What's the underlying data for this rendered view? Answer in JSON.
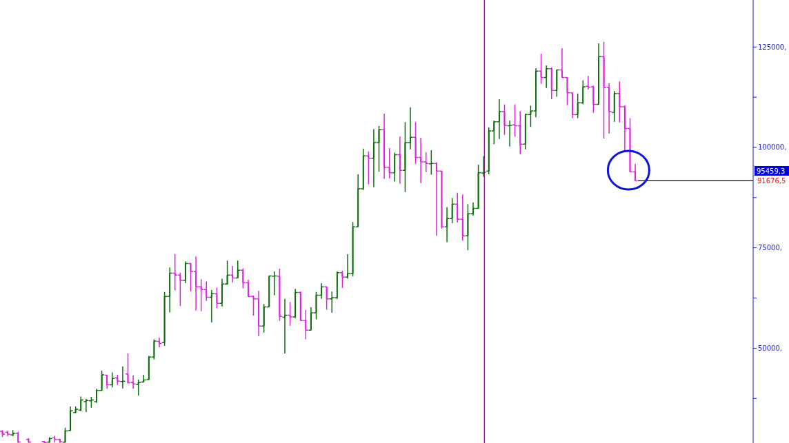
{
  "chart_data": {
    "type": "candlestick",
    "categories": [
      null,
      null,
      null,
      null,
      null,
      null,
      null,
      null,
      null,
      null,
      null,
      null,
      null,
      null,
      null,
      null,
      null,
      null,
      null,
      null,
      null,
      null,
      null,
      null,
      null,
      null,
      null,
      null,
      null,
      null,
      null,
      null,
      null,
      null,
      null,
      null,
      null,
      null,
      null,
      null,
      null,
      null,
      null,
      null,
      null,
      null,
      null,
      null,
      null,
      null,
      null,
      null,
      null,
      null,
      null,
      null,
      null,
      null,
      null,
      null,
      null,
      null,
      null,
      null,
      null,
      null,
      null,
      null,
      null,
      null,
      null,
      null,
      null,
      null,
      null,
      null,
      null,
      null,
      null,
      null,
      null,
      null,
      null,
      null,
      null,
      null,
      null,
      null,
      null,
      null,
      null,
      null,
      null,
      null,
      null,
      null,
      null,
      null,
      null,
      null,
      null,
      null,
      null,
      null,
      null,
      null,
      null,
      null,
      null,
      null,
      null,
      null,
      null,
      null,
      null,
      null,
      null,
      null,
      null,
      null,
      null,
      null,
      null,
      null,
      null,
      null,
      null,
      null,
      null,
      null,
      null,
      null,
      null,
      null,
      null,
      null,
      null,
      null,
      null,
      null,
      null,
      null,
      null,
      null
    ],
    "ohlc": [
      [
        29300,
        29600,
        27900,
        28600
      ],
      [
        29100,
        29500,
        28100,
        28600
      ],
      [
        28400,
        29600,
        28100,
        28800
      ],
      [
        28800,
        29200,
        26450,
        26600
      ],
      null,
      [
        27300,
        27600,
        26450,
        26600
      ],
      null,
      null,
      [
        26800,
        26900,
        26450,
        26500
      ],
      [
        26600,
        27800,
        26450,
        27500
      ],
      [
        27700,
        28200,
        26550,
        27300
      ],
      [
        27300,
        27500,
        26450,
        26700
      ],
      [
        26600,
        30200,
        26450,
        29400
      ],
      [
        29500,
        35500,
        29400,
        34400
      ],
      [
        34000,
        35500,
        33800,
        34800
      ],
      [
        34600,
        38000,
        34300,
        37100
      ],
      [
        36700,
        37400,
        34100,
        37000
      ],
      [
        36900,
        37900,
        35200,
        37100
      ],
      [
        36700,
        39900,
        36400,
        39500
      ],
      [
        39500,
        44400,
        39500,
        43400
      ],
      [
        43300,
        43400,
        39900,
        40900
      ],
      [
        40900,
        44000,
        40200,
        42500
      ],
      [
        42600,
        43400,
        40900,
        41800
      ],
      [
        41700,
        45500,
        40000,
        41800
      ],
      [
        43600,
        48700,
        41200,
        41400
      ],
      [
        41500,
        43200,
        39900,
        41100
      ],
      [
        41000,
        42200,
        38200,
        41500
      ],
      [
        41600,
        43400,
        41500,
        42100
      ],
      [
        42200,
        48100,
        42100,
        47800
      ],
      [
        47800,
        52200,
        47200,
        51800
      ],
      [
        51700,
        52600,
        50200,
        51200
      ],
      [
        51400,
        64000,
        50600,
        62900
      ],
      [
        62900,
        70100,
        58900,
        68700
      ],
      [
        68700,
        73500,
        64400,
        68200
      ],
      [
        68200,
        68800,
        60500,
        66900
      ],
      [
        66900,
        71600,
        66200,
        71100
      ],
      [
        71100,
        71200,
        64200,
        69100
      ],
      [
        69100,
        72800,
        59400,
        65300
      ],
      [
        65300,
        67200,
        59200,
        64600
      ],
      [
        64600,
        66600,
        61800,
        62700
      ],
      [
        62700,
        64500,
        56400,
        63600
      ],
      [
        63600,
        65100,
        60000,
        61200
      ],
      [
        61200,
        67300,
        60400,
        66000
      ],
      [
        66000,
        71800,
        65800,
        68200
      ],
      [
        68200,
        70500,
        66400,
        67500
      ],
      [
        67500,
        71800,
        67500,
        69400
      ],
      [
        69400,
        69900,
        64900,
        66300
      ],
      [
        66300,
        67100,
        62800,
        62900
      ],
      [
        62900,
        63100,
        58100,
        62300
      ],
      [
        62300,
        64300,
        53000,
        55500
      ],
      [
        55500,
        61000,
        53900,
        60300
      ],
      [
        60300,
        68000,
        60300,
        68000
      ],
      [
        67900,
        69100,
        63200,
        68000
      ],
      [
        67900,
        69800,
        56800,
        57900
      ],
      [
        57700,
        62300,
        48700,
        58200
      ],
      [
        58200,
        61500,
        55600,
        57800
      ],
      [
        57800,
        64800,
        57500,
        63900
      ],
      [
        63900,
        64100,
        56800,
        56900
      ],
      [
        56900,
        59500,
        52200,
        54500
      ],
      [
        54500,
        60200,
        54500,
        58800
      ],
      [
        58800,
        64000,
        57200,
        63200
      ],
      [
        63200,
        66200,
        62300,
        65300
      ],
      [
        65300,
        65300,
        59600,
        62300
      ],
      [
        62300,
        64100,
        58800,
        62600
      ],
      [
        62600,
        69100,
        62200,
        68800
      ],
      [
        68800,
        69300,
        65000,
        67700
      ],
      [
        67700,
        73400,
        67300,
        68600
      ],
      [
        68600,
        81400,
        67900,
        80200
      ],
      [
        80200,
        93300,
        80200,
        89700
      ],
      [
        89700,
        99700,
        89400,
        97900
      ],
      [
        97900,
        99000,
        90800,
        97300
      ],
      [
        97300,
        104600,
        90100,
        101200
      ],
      [
        101200,
        105300,
        94000,
        104400
      ],
      [
        104400,
        108400,
        92200,
        95000
      ],
      [
        95000,
        99800,
        92300,
        93700
      ],
      [
        93700,
        98700,
        91500,
        98200
      ],
      [
        98200,
        102700,
        91000,
        94300
      ],
      [
        94300,
        106300,
        88900,
        101200
      ],
      [
        101200,
        110000,
        99500,
        102500
      ],
      [
        102500,
        106300,
        95900,
        97500
      ],
      [
        97500,
        102400,
        91100,
        96400
      ],
      [
        96400,
        98800,
        93900,
        96000
      ],
      [
        95900,
        99300,
        93200,
        96000
      ],
      [
        96000,
        96300,
        78000,
        94100
      ],
      [
        94100,
        94200,
        79800,
        80200
      ],
      [
        80200,
        85100,
        76400,
        82300
      ],
      [
        82300,
        87400,
        81100,
        85900
      ],
      [
        85900,
        88700,
        81300,
        82100
      ],
      [
        82100,
        88300,
        76800,
        78000
      ],
      [
        78000,
        85900,
        74400,
        83500
      ],
      [
        83500,
        86300,
        83000,
        84800
      ],
      [
        84800,
        95700,
        84800,
        93700
      ],
      [
        93600,
        97800,
        92700,
        93800
      ],
      [
        94100,
        105000,
        93300,
        104100
      ],
      [
        104100,
        106700,
        100800,
        106400
      ],
      [
        106400,
        112000,
        102100,
        108900
      ],
      [
        108900,
        110700,
        103100,
        105500
      ],
      [
        105400,
        106700,
        100200,
        105500
      ],
      [
        105600,
        110700,
        102700,
        105400
      ],
      [
        105400,
        109000,
        98300,
        100800
      ],
      [
        100800,
        108400,
        99500,
        108200
      ],
      [
        108200,
        110400,
        105100,
        109100
      ],
      [
        109100,
        119700,
        107500,
        119000
      ],
      [
        119000,
        123300,
        115800,
        117400
      ],
      [
        117400,
        120400,
        114800,
        119600
      ],
      [
        119600,
        119900,
        112000,
        114200
      ],
      [
        114200,
        119300,
        112600,
        119300
      ],
      [
        119300,
        124700,
        117300,
        117400
      ],
      [
        117400,
        117400,
        110500,
        113600
      ],
      [
        113600,
        113600,
        107300,
        108200
      ],
      [
        108200,
        113400,
        107300,
        111100
      ],
      [
        111100,
        116700,
        110700,
        115100
      ],
      [
        115200,
        117800,
        114400,
        115000
      ],
      [
        115100,
        115400,
        108600,
        110700
      ],
      [
        110700,
        125900,
        110700,
        122600
      ],
      [
        122600,
        126300,
        102200,
        114900
      ],
      [
        114900,
        116000,
        103400,
        108900
      ],
      [
        108700,
        114000,
        106400,
        113400
      ],
      [
        113400,
        116400,
        106200,
        110100
      ],
      [
        110100,
        110500,
        99000,
        104700
      ],
      [
        104700,
        107300,
        93900,
        93900
      ],
      [
        93900,
        95900,
        91600,
        91676.5
      ],
      null,
      null,
      null,
      null,
      null,
      null,
      null,
      null,
      null,
      null,
      null,
      null,
      null,
      null,
      null,
      null,
      null,
      null,
      null,
      null,
      null,
      null
    ],
    "colors": [
      "#dd22dd",
      "#dd22dd",
      "#0e6e0e",
      "#dd22dd",
      null,
      "#dd22dd",
      null,
      null,
      "#dd22dd",
      "#0e6e0e",
      "#dd22dd",
      "#dd22dd",
      "#0e6e0e",
      "#0e6e0e",
      "#0e6e0e",
      "#0e6e0e",
      "#0e6e0e",
      "#0e6e0e",
      "#0e6e0e",
      "#0e6e0e",
      "#dd22dd",
      "#0e6e0e",
      "#dd22dd",
      "#0e6e0e",
      "#dd22dd",
      "#dd22dd",
      "#0e6e0e",
      "#0e6e0e",
      "#0e6e0e",
      "#0e6e0e",
      "#dd22dd",
      "#0e6e0e",
      "#0e6e0e",
      "#dd22dd",
      "#dd22dd",
      "#0e6e0e",
      "#dd22dd",
      "#dd22dd",
      "#dd22dd",
      "#dd22dd",
      "#0e6e0e",
      "#dd22dd",
      "#0e6e0e",
      "#0e6e0e",
      "#dd22dd",
      "#0e6e0e",
      "#dd22dd",
      "#dd22dd",
      "#dd22dd",
      "#dd22dd",
      "#0e6e0e",
      "#0e6e0e",
      "#0e6e0e",
      "#dd22dd",
      "#0e6e0e",
      "#dd22dd",
      "#0e6e0e",
      "#dd22dd",
      "#dd22dd",
      "#0e6e0e",
      "#0e6e0e",
      "#0e6e0e",
      "#dd22dd",
      "#0e6e0e",
      "#0e6e0e",
      "#dd22dd",
      "#0e6e0e",
      "#0e6e0e",
      "#0e6e0e",
      "#0e6e0e",
      "#dd22dd",
      "#0e6e0e",
      "#0e6e0e",
      "#dd22dd",
      "#dd22dd",
      "#0e6e0e",
      "#dd22dd",
      "#0e6e0e",
      "#0e6e0e",
      "#dd22dd",
      "#dd22dd",
      "#dd22dd",
      "#0e6e0e",
      "#dd22dd",
      "#dd22dd",
      "#0e6e0e",
      "#0e6e0e",
      "#dd22dd",
      "#dd22dd",
      "#0e6e0e",
      "#0e6e0e",
      "#0e6e0e",
      "#0e6e0e",
      "#0e6e0e",
      "#0e6e0e",
      "#0e6e0e",
      "#dd22dd",
      "#0e6e0e",
      "#dd22dd",
      "#dd22dd",
      "#0e6e0e",
      "#0e6e0e",
      "#0e6e0e",
      "#dd22dd",
      "#0e6e0e",
      "#dd22dd",
      "#0e6e0e",
      "#dd22dd",
      "#dd22dd",
      "#dd22dd",
      "#0e6e0e",
      "#0e6e0e",
      "#dd22dd",
      "#dd22dd",
      "#0e6e0e",
      "#dd22dd",
      "#dd22dd",
      "#0e6e0e",
      "#dd22dd",
      "#dd22dd",
      "#dd22dd",
      "#dd22dd",
      null,
      null,
      null,
      null,
      null,
      null,
      null,
      null,
      null,
      null,
      null,
      null,
      null,
      null,
      null,
      null,
      null,
      null,
      null,
      null,
      null,
      null
    ],
    "ylim": [
      26400,
      136700
    ],
    "yticks": [
      {
        "value": 37500,
        "label": null
      },
      {
        "value": 50000,
        "label": "50000,"
      },
      {
        "value": 62500,
        "label": null
      },
      {
        "value": 75000,
        "label": "75000,"
      },
      {
        "value": 87500,
        "label": null
      },
      {
        "value": 100000,
        "label": "100000,"
      },
      {
        "value": 112500,
        "label": null
      },
      {
        "value": 125000,
        "label": "125000,"
      }
    ],
    "ref_lines": [
      {
        "axis": "y",
        "value": 91676.5,
        "label": "91676,5",
        "color": "#000000"
      }
    ],
    "annotations": [
      "95459,3"
    ]
  }
}
